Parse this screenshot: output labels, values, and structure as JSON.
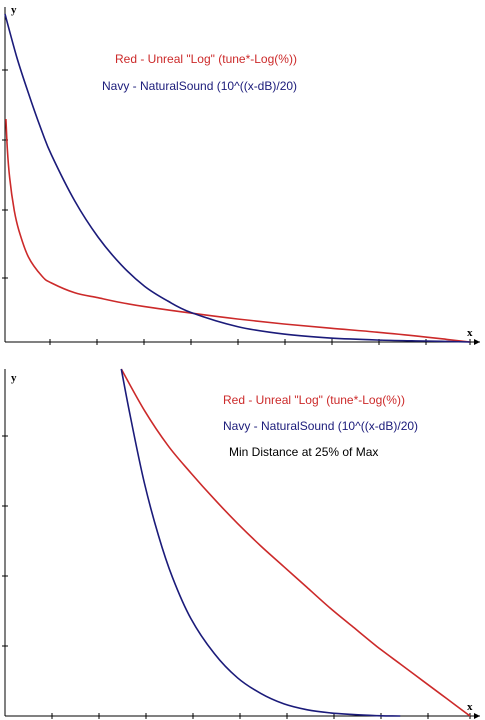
{
  "colors": {
    "red": "#cc2a2a",
    "navy": "#1b1b7a",
    "axis": "#000000",
    "background": "#ffffff"
  },
  "chart_data": [
    {
      "type": "line",
      "xlabel": "x",
      "ylabel": "y",
      "xlim": [
        0,
        1
      ],
      "ylim": [
        0,
        1
      ],
      "grid": false,
      "annotations": [
        {
          "text": "Red - Unreal \"Log\" (tune*-Log(%))",
          "color": "#cc2a2a"
        },
        {
          "text": "Navy - NaturalSound (10^((x-dB)/20)",
          "color": "#1b1b7a"
        }
      ],
      "series": [
        {
          "color": "#cc2a2a",
          "x": [
            0.002,
            0.005,
            0.01,
            0.02,
            0.03,
            0.05,
            0.08,
            0.1,
            0.15,
            0.2,
            0.25,
            0.3,
            0.4,
            0.5,
            0.6,
            0.7,
            0.8,
            0.9,
            0.95,
            1.0
          ],
          "y": [
            0.68,
            0.59,
            0.5,
            0.4,
            0.34,
            0.26,
            0.2,
            0.18,
            0.15,
            0.135,
            0.12,
            0.108,
            0.088,
            0.07,
            0.055,
            0.042,
            0.03,
            0.016,
            0.008,
            0.0
          ]
        },
        {
          "color": "#1b1b7a",
          "x": [
            0.0,
            0.025,
            0.05,
            0.08,
            0.1,
            0.15,
            0.2,
            0.25,
            0.3,
            0.35,
            0.4,
            0.5,
            0.6,
            0.7,
            0.8,
            0.9,
            1.0
          ],
          "y": [
            1.0,
            0.87,
            0.76,
            0.64,
            0.57,
            0.43,
            0.32,
            0.235,
            0.17,
            0.125,
            0.09,
            0.047,
            0.024,
            0.012,
            0.006,
            0.003,
            0.0
          ]
        }
      ]
    },
    {
      "type": "line",
      "xlabel": "x",
      "ylabel": "y",
      "xlim": [
        0,
        1
      ],
      "ylim": [
        0,
        1
      ],
      "grid": false,
      "annotations": [
        {
          "text": "Red - Unreal \"Log\" (tune*-Log(%))",
          "color": "#cc2a2a"
        },
        {
          "text": "Navy - NaturalSound (10^((x-dB)/20)",
          "color": "#1b1b7a"
        },
        {
          "text": "Min Distance at 25% of Max",
          "color": "#000000"
        }
      ],
      "series": [
        {
          "color": "#cc2a2a",
          "x": [
            0.25,
            0.3,
            0.35,
            0.4,
            0.45,
            0.5,
            0.55,
            0.6,
            0.65,
            0.7,
            0.75,
            0.8,
            0.85,
            0.9,
            0.95,
            1.0
          ],
          "y": [
            1.0,
            0.88,
            0.78,
            0.7,
            0.625,
            0.555,
            0.49,
            0.43,
            0.37,
            0.31,
            0.255,
            0.2,
            0.15,
            0.1,
            0.05,
            0.0
          ]
        },
        {
          "color": "#1b1b7a",
          "x": [
            0.25,
            0.27,
            0.3,
            0.33,
            0.36,
            0.4,
            0.45,
            0.5,
            0.55,
            0.6,
            0.65,
            0.7,
            0.75,
            0.8,
            0.85
          ],
          "y": [
            1.0,
            0.86,
            0.67,
            0.52,
            0.4,
            0.28,
            0.18,
            0.11,
            0.065,
            0.035,
            0.018,
            0.009,
            0.004,
            0.001,
            0.0
          ]
        }
      ]
    }
  ]
}
